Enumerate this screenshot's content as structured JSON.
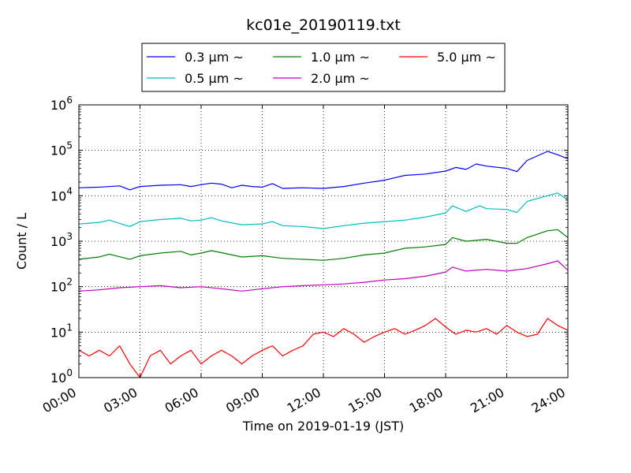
{
  "chart_data": {
    "type": "line",
    "title": "kc01e_20190119.txt",
    "xlabel": "Time on 2019-01-19 (JST)",
    "ylabel": "Count / L",
    "yscale": "log",
    "ylim": [
      1,
      1000000
    ],
    "y_ticks": [
      {
        "value": 1,
        "base": "10",
        "exp": "0"
      },
      {
        "value": 10,
        "base": "10",
        "exp": "1"
      },
      {
        "value": 100,
        "base": "10",
        "exp": "2"
      },
      {
        "value": 1000,
        "base": "10",
        "exp": "3"
      },
      {
        "value": 10000,
        "base": "10",
        "exp": "4"
      },
      {
        "value": 100000,
        "base": "10",
        "exp": "5"
      },
      {
        "value": 1000000,
        "base": "10",
        "exp": "6"
      }
    ],
    "xlim": [
      "00:00",
      "24:00"
    ],
    "x_ticks": [
      "00:00",
      "03:00",
      "06:00",
      "09:00",
      "12:00",
      "15:00",
      "18:00",
      "21:00",
      "24:00"
    ],
    "grid": true,
    "legend_placement": "top-center",
    "series": [
      {
        "name": "0.3 μm ~",
        "color": "#0000ff",
        "points": [
          [
            "00:00",
            15000
          ],
          [
            "01:00",
            15500
          ],
          [
            "02:00",
            16500
          ],
          [
            "02:30",
            13500
          ],
          [
            "03:00",
            16000
          ],
          [
            "04:00",
            17000
          ],
          [
            "05:00",
            17500
          ],
          [
            "05:30",
            16000
          ],
          [
            "06:00",
            17500
          ],
          [
            "06:30",
            19000
          ],
          [
            "07:00",
            18000
          ],
          [
            "07:30",
            15000
          ],
          [
            "08:00",
            17000
          ],
          [
            "08:30",
            16000
          ],
          [
            "09:00",
            15500
          ],
          [
            "09:30",
            18500
          ],
          [
            "10:00",
            14500
          ],
          [
            "11:00",
            15000
          ],
          [
            "12:00",
            14500
          ],
          [
            "13:00",
            16000
          ],
          [
            "14:00",
            19000
          ],
          [
            "15:00",
            22000
          ],
          [
            "16:00",
            28000
          ],
          [
            "17:00",
            30000
          ],
          [
            "18:00",
            35000
          ],
          [
            "18:30",
            42000
          ],
          [
            "19:00",
            38000
          ],
          [
            "19:30",
            50000
          ],
          [
            "20:00",
            45000
          ],
          [
            "21:00",
            40000
          ],
          [
            "21:30",
            34000
          ],
          [
            "22:00",
            60000
          ],
          [
            "23:00",
            95000
          ],
          [
            "23:30",
            80000
          ],
          [
            "24:00",
            65000
          ]
        ]
      },
      {
        "name": "0.5 μm ~",
        "color": "#00bfbf",
        "points": [
          [
            "00:00",
            2400
          ],
          [
            "01:00",
            2600
          ],
          [
            "01:30",
            2900
          ],
          [
            "02:30",
            2100
          ],
          [
            "03:00",
            2700
          ],
          [
            "04:00",
            3000
          ],
          [
            "05:00",
            3200
          ],
          [
            "05:30",
            2800
          ],
          [
            "06:00",
            2900
          ],
          [
            "06:30",
            3300
          ],
          [
            "07:00",
            2800
          ],
          [
            "08:00",
            2300
          ],
          [
            "09:00",
            2400
          ],
          [
            "09:30",
            2700
          ],
          [
            "10:00",
            2200
          ],
          [
            "11:00",
            2100
          ],
          [
            "12:00",
            1900
          ],
          [
            "13:00",
            2200
          ],
          [
            "14:00",
            2500
          ],
          [
            "15:00",
            2700
          ],
          [
            "16:00",
            2900
          ],
          [
            "17:00",
            3400
          ],
          [
            "18:00",
            4200
          ],
          [
            "18:20",
            6000
          ],
          [
            "19:00",
            4500
          ],
          [
            "19:40",
            6000
          ],
          [
            "20:00",
            5200
          ],
          [
            "21:00",
            5000
          ],
          [
            "21:30",
            4300
          ],
          [
            "22:00",
            7500
          ],
          [
            "23:00",
            10000
          ],
          [
            "23:30",
            11500
          ],
          [
            "24:00",
            8000
          ]
        ]
      },
      {
        "name": "1.0 μm ~",
        "color": "#008000",
        "points": [
          [
            "00:00",
            400
          ],
          [
            "01:00",
            450
          ],
          [
            "01:30",
            520
          ],
          [
            "02:30",
            400
          ],
          [
            "03:00",
            480
          ],
          [
            "04:00",
            550
          ],
          [
            "05:00",
            600
          ],
          [
            "05:30",
            500
          ],
          [
            "06:00",
            550
          ],
          [
            "06:30",
            620
          ],
          [
            "07:00",
            560
          ],
          [
            "08:00",
            450
          ],
          [
            "09:00",
            480
          ],
          [
            "10:00",
            420
          ],
          [
            "11:00",
            400
          ],
          [
            "12:00",
            380
          ],
          [
            "13:00",
            420
          ],
          [
            "14:00",
            500
          ],
          [
            "15:00",
            550
          ],
          [
            "16:00",
            700
          ],
          [
            "17:00",
            750
          ],
          [
            "18:00",
            850
          ],
          [
            "18:20",
            1200
          ],
          [
            "19:00",
            1000
          ],
          [
            "20:00",
            1100
          ],
          [
            "21:00",
            900
          ],
          [
            "21:30",
            900
          ],
          [
            "22:00",
            1200
          ],
          [
            "23:00",
            1700
          ],
          [
            "23:30",
            1800
          ],
          [
            "24:00",
            1200
          ]
        ]
      },
      {
        "name": "2.0 μm ~",
        "color": "#bf00bf",
        "points": [
          [
            "00:00",
            80
          ],
          [
            "01:00",
            85
          ],
          [
            "02:00",
            95
          ],
          [
            "03:00",
            100
          ],
          [
            "04:00",
            105
          ],
          [
            "05:00",
            95
          ],
          [
            "06:00",
            100
          ],
          [
            "07:00",
            90
          ],
          [
            "08:00",
            80
          ],
          [
            "09:00",
            90
          ],
          [
            "10:00",
            100
          ],
          [
            "11:00",
            105
          ],
          [
            "12:00",
            110
          ],
          [
            "13:00",
            115
          ],
          [
            "14:00",
            125
          ],
          [
            "15:00",
            140
          ],
          [
            "16:00",
            150
          ],
          [
            "17:00",
            170
          ],
          [
            "18:00",
            210
          ],
          [
            "18:20",
            270
          ],
          [
            "19:00",
            220
          ],
          [
            "20:00",
            240
          ],
          [
            "21:00",
            220
          ],
          [
            "22:00",
            250
          ],
          [
            "23:00",
            320
          ],
          [
            "23:30",
            370
          ],
          [
            "24:00",
            230
          ]
        ]
      },
      {
        "name": "5.0 μm ~",
        "color": "#ff0000",
        "points": [
          [
            "00:00",
            4
          ],
          [
            "00:30",
            3
          ],
          [
            "01:00",
            4
          ],
          [
            "01:30",
            3
          ],
          [
            "02:00",
            5
          ],
          [
            "02:30",
            2
          ],
          [
            "03:00",
            1
          ],
          [
            "03:30",
            3
          ],
          [
            "04:00",
            4
          ],
          [
            "04:30",
            2
          ],
          [
            "05:00",
            3
          ],
          [
            "05:30",
            4
          ],
          [
            "06:00",
            2
          ],
          [
            "06:30",
            3
          ],
          [
            "07:00",
            4
          ],
          [
            "07:30",
            3
          ],
          [
            "08:00",
            2
          ],
          [
            "08:30",
            3
          ],
          [
            "09:00",
            4
          ],
          [
            "09:30",
            5
          ],
          [
            "10:00",
            3
          ],
          [
            "10:30",
            4
          ],
          [
            "11:00",
            5
          ],
          [
            "11:30",
            9
          ],
          [
            "12:00",
            10
          ],
          [
            "12:30",
            8
          ],
          [
            "13:00",
            12
          ],
          [
            "13:30",
            9
          ],
          [
            "14:00",
            6
          ],
          [
            "14:30",
            8
          ],
          [
            "15:00",
            10
          ],
          [
            "15:30",
            12
          ],
          [
            "16:00",
            9
          ],
          [
            "16:30",
            11
          ],
          [
            "17:00",
            14
          ],
          [
            "17:30",
            20
          ],
          [
            "18:00",
            13
          ],
          [
            "18:30",
            9
          ],
          [
            "19:00",
            11
          ],
          [
            "19:30",
            10
          ],
          [
            "20:00",
            12
          ],
          [
            "20:30",
            9
          ],
          [
            "21:00",
            14
          ],
          [
            "21:30",
            10
          ],
          [
            "22:00",
            8
          ],
          [
            "22:30",
            9
          ],
          [
            "23:00",
            20
          ],
          [
            "23:30",
            14
          ],
          [
            "24:00",
            11
          ]
        ]
      }
    ]
  }
}
